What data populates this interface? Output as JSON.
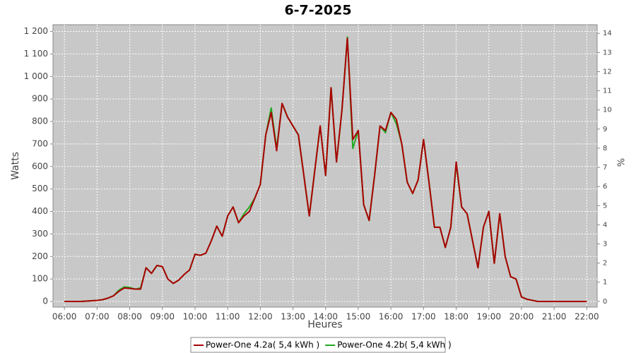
{
  "chart_data": {
    "type": "line",
    "title": "6-7-2025",
    "x_label": "Heures",
    "y_label": "Watts",
    "y2_label": "%",
    "x": [
      360,
      390,
      420,
      430,
      440,
      450,
      460,
      470,
      480,
      490,
      500,
      510,
      520,
      530,
      540,
      550,
      560,
      570,
      580,
      590,
      600,
      610,
      620,
      630,
      640,
      650,
      660,
      670,
      680,
      690,
      700,
      710,
      720,
      730,
      740,
      750,
      760,
      770,
      780,
      790,
      800,
      810,
      820,
      830,
      840,
      850,
      860,
      870,
      880,
      890,
      900,
      910,
      920,
      930,
      940,
      950,
      960,
      970,
      980,
      990,
      1000,
      1010,
      1020,
      1030,
      1040,
      1050,
      1060,
      1070,
      1080,
      1090,
      1100,
      1110,
      1120,
      1130,
      1140,
      1150,
      1160,
      1170,
      1180,
      1190,
      1200,
      1210,
      1220,
      1230,
      1320
    ],
    "series": [
      {
        "name": "Power-One 4.2b( 5,4 kWh )",
        "color": "#22aa22",
        "values": [
          0,
          0,
          5,
          8,
          15,
          25,
          50,
          65,
          62,
          55,
          60,
          150,
          125,
          160,
          155,
          100,
          80,
          95,
          120,
          140,
          210,
          205,
          215,
          270,
          335,
          290,
          380,
          420,
          350,
          390,
          420,
          460,
          520,
          740,
          860,
          680,
          880,
          820,
          780,
          740,
          560,
          380,
          580,
          780,
          560,
          950,
          620,
          850,
          1175,
          680,
          760,
          430,
          360,
          560,
          780,
          750,
          840,
          790,
          700,
          530,
          480,
          540,
          720,
          530,
          330,
          330,
          240,
          330,
          610,
          420,
          390,
          270,
          150,
          330,
          400,
          170,
          390,
          200,
          110,
          100,
          20,
          10,
          5,
          0,
          0
        ]
      },
      {
        "name": "Power-One 4.2a( 5,4 kWh )",
        "color": "#aa0000",
        "values": [
          0,
          0,
          5,
          8,
          15,
          25,
          45,
          60,
          58,
          55,
          55,
          150,
          125,
          160,
          155,
          100,
          80,
          95,
          120,
          140,
          210,
          205,
          215,
          270,
          335,
          290,
          380,
          420,
          350,
          380,
          400,
          460,
          520,
          740,
          840,
          670,
          880,
          820,
          780,
          740,
          560,
          380,
          580,
          780,
          560,
          950,
          620,
          850,
          1170,
          720,
          760,
          430,
          360,
          560,
          780,
          760,
          840,
          810,
          700,
          530,
          480,
          540,
          720,
          530,
          330,
          330,
          240,
          330,
          620,
          420,
          390,
          270,
          150,
          330,
          400,
          170,
          390,
          200,
          110,
          100,
          20,
          10,
          5,
          0,
          0
        ]
      }
    ],
    "xlim": [
      339,
      1339
    ],
    "xticks": [
      {
        "value": 360,
        "label": "06:00"
      },
      {
        "value": 420,
        "label": "07:00"
      },
      {
        "value": 480,
        "label": "08:00"
      },
      {
        "value": 540,
        "label": "09:00"
      },
      {
        "value": 600,
        "label": "10:00"
      },
      {
        "value": 660,
        "label": "11:00"
      },
      {
        "value": 720,
        "label": "12:00"
      },
      {
        "value": 780,
        "label": "13:00"
      },
      {
        "value": 840,
        "label": "14:00"
      },
      {
        "value": 900,
        "label": "15:00"
      },
      {
        "value": 960,
        "label": "16:00"
      },
      {
        "value": 1020,
        "label": "17:00"
      },
      {
        "value": 1080,
        "label": "18:00"
      },
      {
        "value": 1140,
        "label": "19:00"
      },
      {
        "value": 1200,
        "label": "20:00"
      },
      {
        "value": 1260,
        "label": "21:00"
      },
      {
        "value": 1320,
        "label": "22:00"
      }
    ],
    "ylim": [
      -25,
      1230
    ],
    "yticks": [
      0,
      100,
      200,
      300,
      400,
      500,
      600,
      700,
      800,
      900,
      {
        "value": 1000,
        "label": "1 000"
      },
      {
        "value": 1100,
        "label": "1 100"
      },
      {
        "value": 1200,
        "label": "1 200"
      }
    ],
    "y2lim": [
      -0.3,
      14.45
    ],
    "y2ticks": [
      0,
      1,
      2,
      3,
      4,
      5,
      6,
      7,
      8,
      9,
      10,
      11,
      12,
      13,
      14
    ],
    "grid": true
  }
}
